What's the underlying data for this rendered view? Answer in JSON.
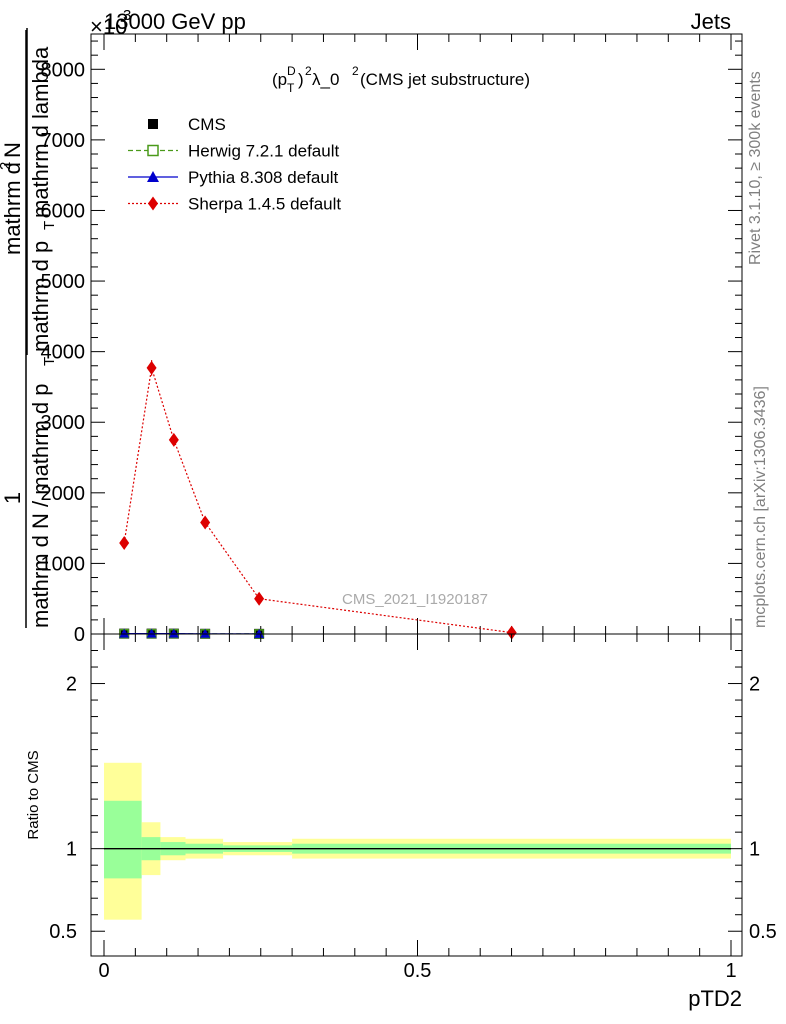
{
  "header": {
    "left": "13000 GeV pp",
    "right": "Jets",
    "exponent": "×10",
    "exponent_power": "3"
  },
  "side_labels": {
    "rivet": "Rivet 3.1.10, ≥ 300k events",
    "mcplots": "mcplots.cern.ch [arXiv:1306.3436]"
  },
  "watermark": "CMS_2021_I1920187",
  "chart_data": [
    {
      "type": "line",
      "title": "(p_T^D)^2 λ_0^2 (CMS jet substructure)",
      "title_parts": {
        "p": "(p",
        "sup_d": "D",
        "sub_t": "T",
        "close": ")",
        "sq1": "2",
        "lambda": " λ_0",
        "sq2": "2",
        "tail": " (CMS jet substructure)"
      },
      "xlabel": "pTD2",
      "ylabel": "1/mathrm d N / mathrm d p_T mathrm d^2N / mathrm d p_T mathrm d lambda",
      "ylabel_parts": {
        "one": "1",
        "den1": "mathrm d N / mathrm d p",
        "den_sub": "T",
        "num_top": "mathrm d",
        "num_sup": "2",
        "num_n": "N",
        "den2": "mathrm d p",
        "den2_sub": "T",
        "den2_tail": " mathrm d lambda"
      },
      "xlim": [
        0,
        1
      ],
      "ylim": [
        0,
        8500
      ],
      "yticks": [
        0,
        1000,
        2000,
        3000,
        4000,
        5000,
        6000,
        7000,
        8000
      ],
      "ytick_labels": [
        "0",
        "1000",
        "2000",
        "3000",
        "4000",
        "5000",
        "6000",
        "7000",
        "8000"
      ],
      "legend_position": "top-left",
      "series": [
        {
          "name": "CMS",
          "style": "marker-square",
          "color": "#000000",
          "x": [
            0.0322,
            0.0759,
            0.1114,
            0.1613,
            0.2474
          ],
          "y": [
            5,
            5,
            5,
            3,
            2
          ]
        },
        {
          "name": "Herwig 7.2.1 default",
          "style": "dashed-open-square",
          "color": "#4a9a1a",
          "x": [
            0.0322,
            0.0759,
            0.1114,
            0.1613,
            0.2474
          ],
          "y": [
            5,
            5,
            5,
            3,
            2
          ]
        },
        {
          "name": "Pythia 8.308 default",
          "style": "solid-triangle",
          "color": "#0000cc",
          "x": [
            0.0322,
            0.0759,
            0.1114,
            0.1613,
            0.2474
          ],
          "y": [
            5,
            5,
            5,
            3,
            2
          ]
        },
        {
          "name": "Sherpa 1.4.5 default",
          "style": "dotted-diamond",
          "color": "#dd0000",
          "x": [
            0.0322,
            0.0759,
            0.1114,
            0.1613,
            0.2474,
            0.6502
          ],
          "y": [
            1290,
            3770,
            2750,
            1580,
            500,
            20
          ],
          "yerr": [
            40,
            110,
            80,
            45,
            20,
            5
          ]
        }
      ]
    },
    {
      "type": "area",
      "ylabel": "Ratio to CMS",
      "xlabel": "pTD2",
      "xlim": [
        0,
        1
      ],
      "ylim": [
        0.35,
        2.3
      ],
      "yticks": [
        0.5,
        1,
        2
      ],
      "ytick_labels": [
        "0.5",
        "1",
        "2"
      ],
      "xticks": [
        0,
        0.5,
        1
      ],
      "xtick_labels": [
        "0",
        "0.5",
        "1"
      ],
      "reference": 1,
      "bins": [
        {
          "x0": 0.0,
          "x1": 0.06,
          "stat_lo": 0.82,
          "stat_hi": 1.29,
          "tot_lo": 0.57,
          "tot_hi": 1.52
        },
        {
          "x0": 0.06,
          "x1": 0.09,
          "stat_lo": 0.93,
          "stat_hi": 1.07,
          "tot_lo": 0.84,
          "tot_hi": 1.16
        },
        {
          "x0": 0.09,
          "x1": 0.13,
          "stat_lo": 0.96,
          "stat_hi": 1.04,
          "tot_lo": 0.93,
          "tot_hi": 1.07
        },
        {
          "x0": 0.13,
          "x1": 0.19,
          "stat_lo": 0.97,
          "stat_hi": 1.03,
          "tot_lo": 0.94,
          "tot_hi": 1.06
        },
        {
          "x0": 0.19,
          "x1": 0.3,
          "stat_lo": 0.98,
          "stat_hi": 1.02,
          "tot_lo": 0.96,
          "tot_hi": 1.04
        },
        {
          "x0": 0.3,
          "x1": 1.0,
          "stat_lo": 0.97,
          "stat_hi": 1.03,
          "tot_lo": 0.94,
          "tot_hi": 1.06
        }
      ],
      "band_colors": {
        "stat": "#99ff99",
        "total": "#ffff99"
      }
    }
  ]
}
